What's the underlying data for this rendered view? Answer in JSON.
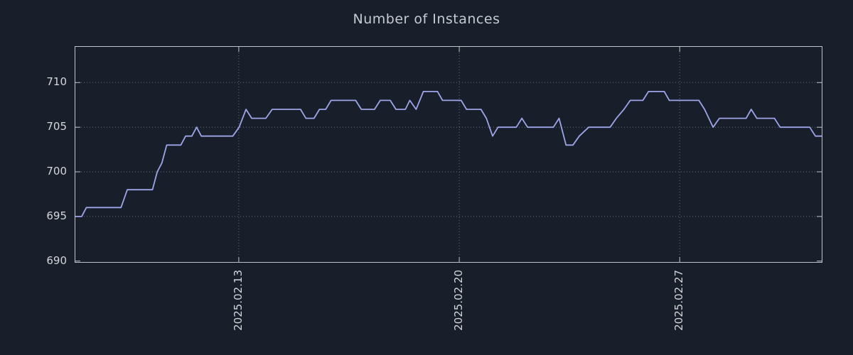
{
  "chart_data": {
    "type": "line",
    "title": "Number of Instances",
    "xlabel": "",
    "ylabel": "",
    "legend": "none",
    "grid": "dotted",
    "ylim": [
      689.9,
      714
    ],
    "xlim": [
      0,
      23.7
    ],
    "yticks": [
      690,
      695,
      700,
      705,
      710
    ],
    "xticks": [
      {
        "pos": 5.19,
        "label": "2025.02.13"
      },
      {
        "pos": 12.19,
        "label": "2025.02.20"
      },
      {
        "pos": 19.19,
        "label": "2025.02.27"
      }
    ],
    "colors": {
      "background": "#181e2a",
      "grid": "#6b707b",
      "axis_border": "#c0c3c9",
      "tick_text": "#d4d6da",
      "title_text": "#c6cad2"
    },
    "series": [
      {
        "name": "instances",
        "color": "#9da5e8",
        "points": [
          [
            0.0,
            695
          ],
          [
            0.2,
            695
          ],
          [
            0.35,
            696
          ],
          [
            1.45,
            696
          ],
          [
            1.65,
            698
          ],
          [
            2.45,
            698
          ],
          [
            2.6,
            700
          ],
          [
            2.75,
            701
          ],
          [
            2.9,
            703
          ],
          [
            3.35,
            703
          ],
          [
            3.5,
            704
          ],
          [
            3.7,
            704
          ],
          [
            3.85,
            705
          ],
          [
            4.0,
            704
          ],
          [
            5.0,
            704
          ],
          [
            5.2,
            705
          ],
          [
            5.42,
            707
          ],
          [
            5.6,
            706
          ],
          [
            6.05,
            706
          ],
          [
            6.25,
            707
          ],
          [
            7.15,
            707
          ],
          [
            7.32,
            706
          ],
          [
            7.58,
            706
          ],
          [
            7.75,
            707
          ],
          [
            7.95,
            707
          ],
          [
            8.12,
            708
          ],
          [
            8.9,
            708
          ],
          [
            9.08,
            707
          ],
          [
            9.5,
            707
          ],
          [
            9.68,
            708
          ],
          [
            10.0,
            708
          ],
          [
            10.18,
            707
          ],
          [
            10.48,
            707
          ],
          [
            10.62,
            708
          ],
          [
            10.82,
            707
          ],
          [
            11.05,
            709
          ],
          [
            11.5,
            709
          ],
          [
            11.66,
            708
          ],
          [
            12.25,
            708
          ],
          [
            12.42,
            707
          ],
          [
            12.88,
            707
          ],
          [
            13.05,
            706
          ],
          [
            13.25,
            704
          ],
          [
            13.42,
            705
          ],
          [
            14.0,
            705
          ],
          [
            14.18,
            706
          ],
          [
            14.36,
            705
          ],
          [
            15.18,
            705
          ],
          [
            15.36,
            706
          ],
          [
            15.58,
            703
          ],
          [
            15.8,
            703
          ],
          [
            16.0,
            704
          ],
          [
            16.3,
            705
          ],
          [
            16.98,
            705
          ],
          [
            17.18,
            706
          ],
          [
            17.42,
            707
          ],
          [
            17.62,
            708
          ],
          [
            18.02,
            708
          ],
          [
            18.2,
            709
          ],
          [
            18.7,
            709
          ],
          [
            18.86,
            708
          ],
          [
            19.8,
            708
          ],
          [
            19.98,
            707
          ],
          [
            20.25,
            705
          ],
          [
            20.45,
            706
          ],
          [
            21.3,
            706
          ],
          [
            21.46,
            707
          ],
          [
            21.64,
            706
          ],
          [
            22.2,
            706
          ],
          [
            22.38,
            705
          ],
          [
            23.32,
            705
          ],
          [
            23.5,
            704
          ],
          [
            23.7,
            704
          ]
        ]
      }
    ]
  }
}
